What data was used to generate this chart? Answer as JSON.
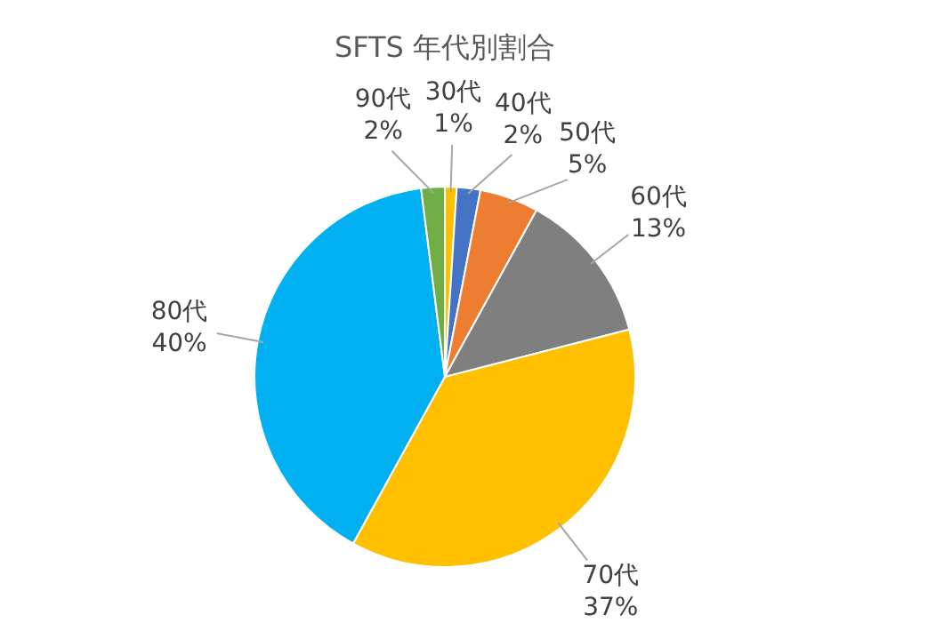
{
  "chart_data": {
    "type": "pie",
    "title": "SFTS 年代別割合",
    "categories": [
      "30代",
      "40代",
      "50代",
      "60代",
      "70代",
      "80代",
      "90代"
    ],
    "values": [
      1,
      2,
      5,
      13,
      37,
      40,
      2
    ],
    "value_labels": [
      "1%",
      "2%",
      "5%",
      "13%",
      "37%",
      "40%",
      "2%"
    ],
    "colors": [
      "#ffc000",
      "#4472c4",
      "#ed7d31",
      "#7f7f7f",
      "#ffc000",
      "#00b0f0",
      "#70ad47"
    ]
  }
}
